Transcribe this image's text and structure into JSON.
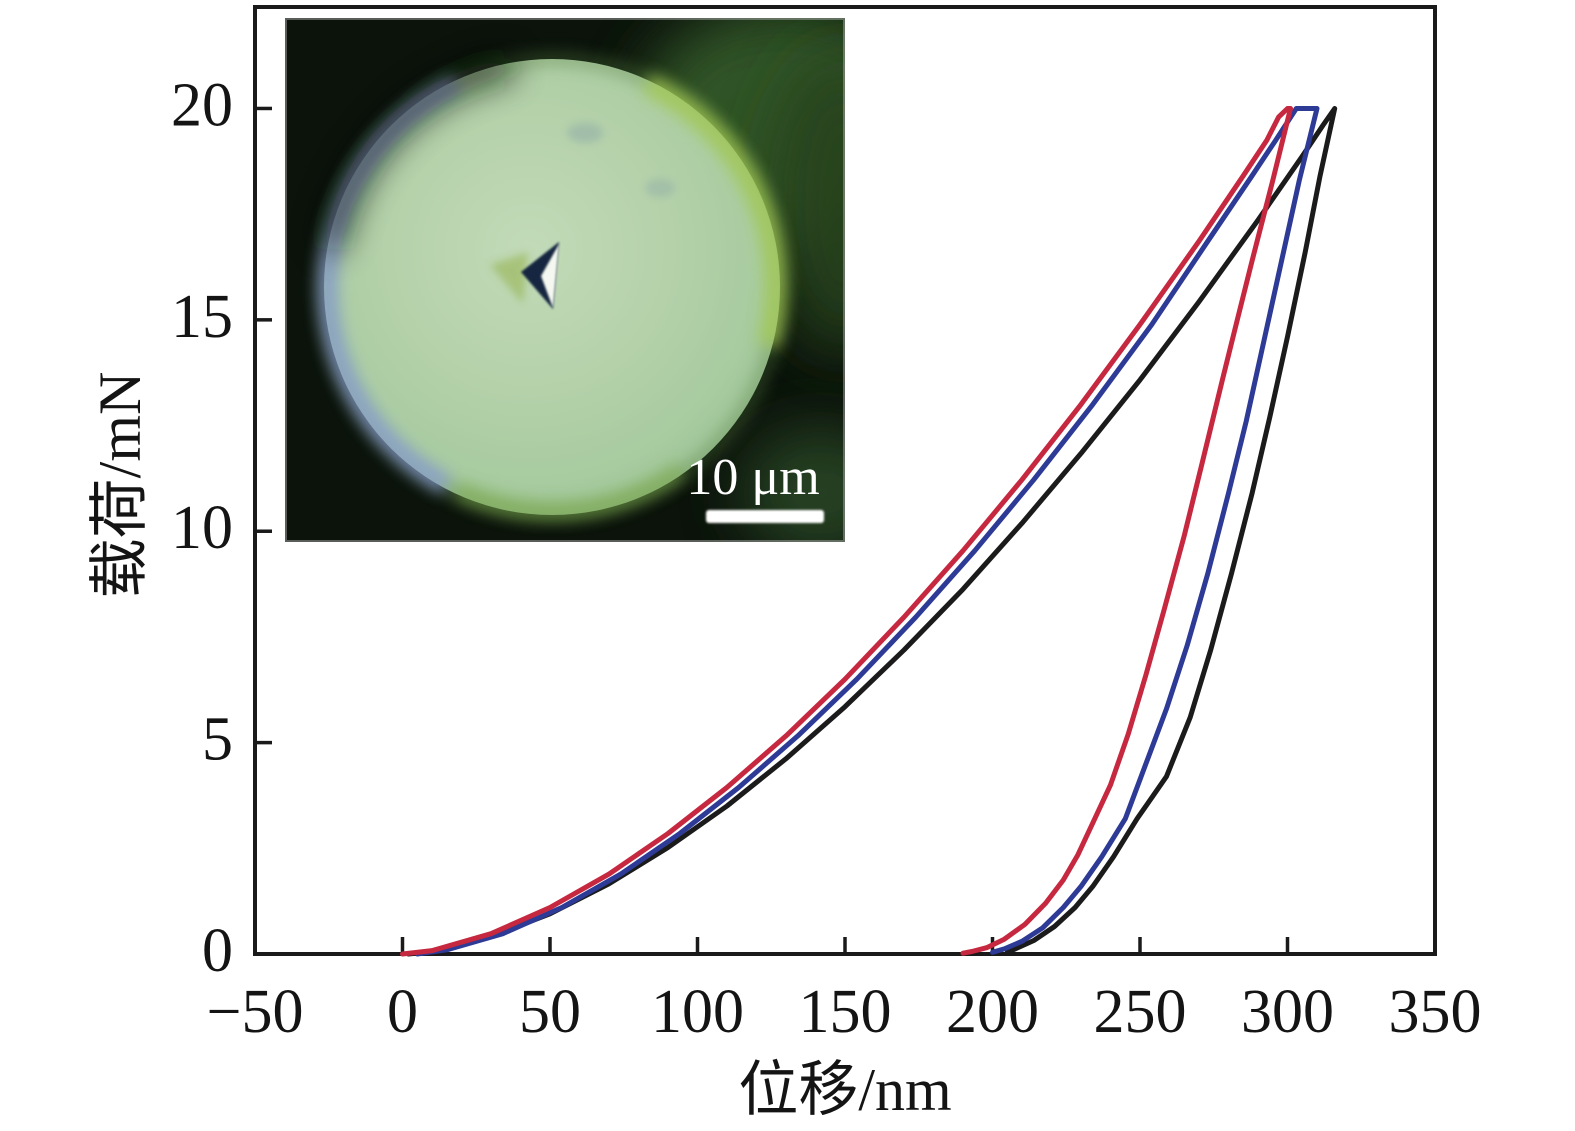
{
  "figure": {
    "x_axis_title": "位移/nm",
    "y_axis_title": "载荷/mN",
    "x_tick_labels": [
      "−50",
      "0",
      "50",
      "100",
      "150",
      "200",
      "250",
      "300",
      "350"
    ],
    "y_tick_labels": [
      "0",
      "5",
      "10",
      "15",
      "20"
    ]
  },
  "inset": {
    "scale_label": "10 μm"
  },
  "chart_data": {
    "type": "line",
    "title": "",
    "xlabel": "位移/nm",
    "ylabel": "载荷/mN",
    "xlim": [
      -50,
      350
    ],
    "ylim": [
      0,
      22.4
    ],
    "x_ticks": [
      -50,
      0,
      50,
      100,
      150,
      200,
      250,
      300,
      350
    ],
    "y_ticks": [
      0,
      5,
      10,
      15,
      20
    ],
    "grid": false,
    "legend": "none",
    "series": [
      {
        "name": "indent-curve-black",
        "color": "#1b1b1b",
        "points": [
          [
            2,
            0
          ],
          [
            12,
            0.07
          ],
          [
            30,
            0.41
          ],
          [
            50,
            0.95
          ],
          [
            70,
            1.66
          ],
          [
            90,
            2.52
          ],
          [
            110,
            3.5
          ],
          [
            130,
            4.62
          ],
          [
            150,
            5.85
          ],
          [
            170,
            7.19
          ],
          [
            190,
            8.63
          ],
          [
            210,
            10.19
          ],
          [
            230,
            11.84
          ],
          [
            250,
            13.58
          ],
          [
            270,
            15.43
          ],
          [
            290,
            17.36
          ],
          [
            305,
            18.87
          ],
          [
            312,
            19.6
          ],
          [
            316,
            20
          ],
          [
            311,
            18.4
          ],
          [
            306,
            16.6
          ],
          [
            300,
            14.6
          ],
          [
            294,
            12.7
          ],
          [
            288,
            10.9
          ],
          [
            281,
            9.0
          ],
          [
            274,
            7.2
          ],
          [
            267,
            5.6
          ],
          [
            259,
            4.2
          ],
          [
            249,
            3.2
          ],
          [
            241,
            2.3
          ],
          [
            234,
            1.6
          ],
          [
            228,
            1.1
          ],
          [
            221,
            0.65
          ],
          [
            214,
            0.32
          ],
          [
            208,
            0.13
          ],
          [
            205,
            0.04
          ]
        ]
      },
      {
        "name": "indent-curve-blue",
        "color": "#2d3a96",
        "points": [
          [
            5,
            0
          ],
          [
            15,
            0.1
          ],
          [
            34,
            0.48
          ],
          [
            54,
            1.1
          ],
          [
            74,
            1.89
          ],
          [
            94,
            2.85
          ],
          [
            114,
            3.94
          ],
          [
            134,
            5.16
          ],
          [
            154,
            6.5
          ],
          [
            174,
            7.97
          ],
          [
            194,
            9.54
          ],
          [
            214,
            11.22
          ],
          [
            234,
            13.0
          ],
          [
            254,
            14.89
          ],
          [
            273,
            16.86
          ],
          [
            288,
            18.41
          ],
          [
            296,
            19.25
          ],
          [
            303,
            20
          ],
          [
            310,
            20
          ],
          [
            304,
            18.3
          ],
          [
            298,
            16.4
          ],
          [
            292,
            14.5
          ],
          [
            286,
            12.6
          ],
          [
            280,
            10.9
          ],
          [
            273,
            9.0
          ],
          [
            266,
            7.3
          ],
          [
            259,
            5.8
          ],
          [
            252,
            4.5
          ],
          [
            245,
            3.2
          ],
          [
            237,
            2.3
          ],
          [
            230,
            1.6
          ],
          [
            224,
            1.1
          ],
          [
            217,
            0.62
          ],
          [
            210,
            0.3
          ],
          [
            204,
            0.12
          ],
          [
            200,
            0.04
          ]
        ]
      },
      {
        "name": "indent-curve-red",
        "color": "#c62840",
        "points": [
          [
            0,
            0
          ],
          [
            10,
            0.08
          ],
          [
            30,
            0.48
          ],
          [
            50,
            1.1
          ],
          [
            70,
            1.89
          ],
          [
            90,
            2.85
          ],
          [
            110,
            3.94
          ],
          [
            130,
            5.16
          ],
          [
            150,
            6.5
          ],
          [
            170,
            7.97
          ],
          [
            190,
            9.54
          ],
          [
            210,
            11.22
          ],
          [
            230,
            13.0
          ],
          [
            250,
            14.89
          ],
          [
            270,
            16.86
          ],
          [
            285,
            18.41
          ],
          [
            293,
            19.25
          ],
          [
            297,
            19.8
          ],
          [
            300,
            20
          ],
          [
            301,
            20
          ],
          [
            295,
            18.3
          ],
          [
            288,
            16.4
          ],
          [
            283,
            15.0
          ],
          [
            278,
            13.6
          ],
          [
            271,
            11.6
          ],
          [
            265,
            9.9
          ],
          [
            258,
            8.1
          ],
          [
            252,
            6.6
          ],
          [
            246,
            5.2
          ],
          [
            240,
            4.0
          ],
          [
            234,
            3.1
          ],
          [
            229,
            2.35
          ],
          [
            224,
            1.75
          ],
          [
            218,
            1.2
          ],
          [
            211,
            0.7
          ],
          [
            204,
            0.35
          ],
          [
            198,
            0.15
          ],
          [
            193,
            0.06
          ],
          [
            190,
            0.02
          ]
        ]
      }
    ]
  }
}
